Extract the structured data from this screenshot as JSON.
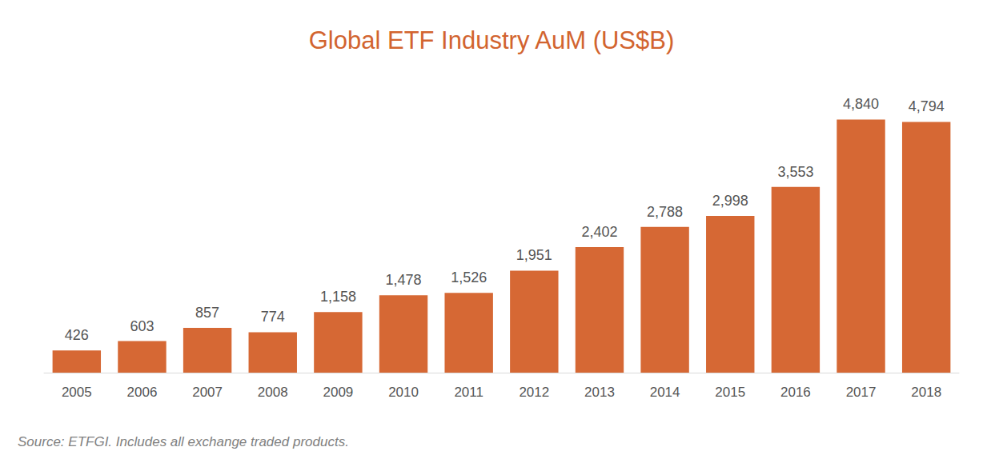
{
  "chart_data": {
    "type": "bar",
    "title": "Global ETF Industry AuM (US$B)",
    "note": "Source: ETFGI. Includes all exchange traded products.",
    "categories": [
      "2005",
      "2006",
      "2007",
      "2008",
      "2009",
      "2010",
      "2011",
      "2012",
      "2013",
      "2014",
      "2015",
      "2016",
      "2017",
      "2018"
    ],
    "values": [
      426,
      603,
      857,
      774,
      1158,
      1478,
      1526,
      1951,
      2402,
      2788,
      2998,
      3553,
      4840,
      4794
    ],
    "value_labels": [
      "426",
      "603",
      "857",
      "774",
      "1,158",
      "1,478",
      "1,526",
      "1,951",
      "2,402",
      "2,788",
      "2,998",
      "3,553",
      "4,840",
      "4,794"
    ],
    "color": "#d66834",
    "ylim": [
      0,
      5000
    ],
    "grid": false,
    "data_labels": true,
    "tick_labels": "x"
  }
}
